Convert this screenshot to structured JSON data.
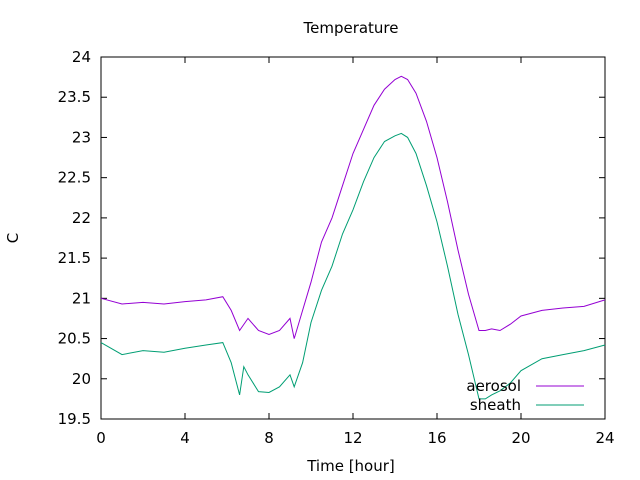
{
  "chart_data": {
    "type": "line",
    "title": "Temperature",
    "xlabel": "Time [hour]",
    "ylabel": "C",
    "xlim": [
      0,
      24
    ],
    "ylim": [
      19.5,
      24
    ],
    "xticks": [
      "0",
      "4",
      "8",
      "12",
      "16",
      "20",
      "24"
    ],
    "yticks": [
      "19.5",
      "20",
      "20.5",
      "21",
      "21.5",
      "22",
      "22.5",
      "23",
      "23.5",
      "24"
    ],
    "grid": false,
    "legend_position": "bottom-right",
    "series": [
      {
        "name": "aerosol",
        "color": "#9400d3",
        "x": [
          0,
          1,
          2,
          3,
          4,
          5,
          5.8,
          6.2,
          6.6,
          7,
          7.5,
          8,
          8.5,
          9,
          9.2,
          9.6,
          10,
          10.5,
          11,
          11.5,
          12,
          12.5,
          13,
          13.5,
          14,
          14.3,
          14.6,
          15,
          15.5,
          16,
          16.5,
          17,
          17.5,
          18,
          18.3,
          18.6,
          19,
          19.5,
          20,
          21,
          22,
          23,
          24
        ],
        "y": [
          21.0,
          20.93,
          20.95,
          20.93,
          20.96,
          20.98,
          21.02,
          20.85,
          20.6,
          20.75,
          20.6,
          20.55,
          20.6,
          20.75,
          20.5,
          20.85,
          21.2,
          21.7,
          22.0,
          22.4,
          22.8,
          23.1,
          23.4,
          23.6,
          23.72,
          23.76,
          23.72,
          23.55,
          23.2,
          22.75,
          22.2,
          21.6,
          21.05,
          20.6,
          20.6,
          20.62,
          20.6,
          20.68,
          20.78,
          20.85,
          20.88,
          20.9,
          20.98
        ]
      },
      {
        "name": "sheath",
        "color": "#009e73",
        "x": [
          0,
          1,
          2,
          3,
          4,
          5,
          5.8,
          6.2,
          6.6,
          6.8,
          7,
          7.5,
          8,
          8.5,
          9,
          9.2,
          9.6,
          10,
          10.5,
          11,
          11.5,
          12,
          12.5,
          13,
          13.5,
          14,
          14.3,
          14.6,
          15,
          15.5,
          16,
          16.5,
          17,
          17.5,
          18,
          18.3,
          18.6,
          19,
          19.5,
          20,
          21,
          22,
          23,
          24
        ],
        "y": [
          20.45,
          20.3,
          20.35,
          20.33,
          20.38,
          20.42,
          20.45,
          20.2,
          19.8,
          20.15,
          20.05,
          19.84,
          19.83,
          19.9,
          20.05,
          19.9,
          20.2,
          20.7,
          21.1,
          21.4,
          21.8,
          22.1,
          22.45,
          22.75,
          22.95,
          23.02,
          23.05,
          23.0,
          22.8,
          22.4,
          21.95,
          21.4,
          20.8,
          20.3,
          19.75,
          19.75,
          19.8,
          19.85,
          19.95,
          20.1,
          20.25,
          20.3,
          20.35,
          20.42
        ]
      }
    ]
  }
}
